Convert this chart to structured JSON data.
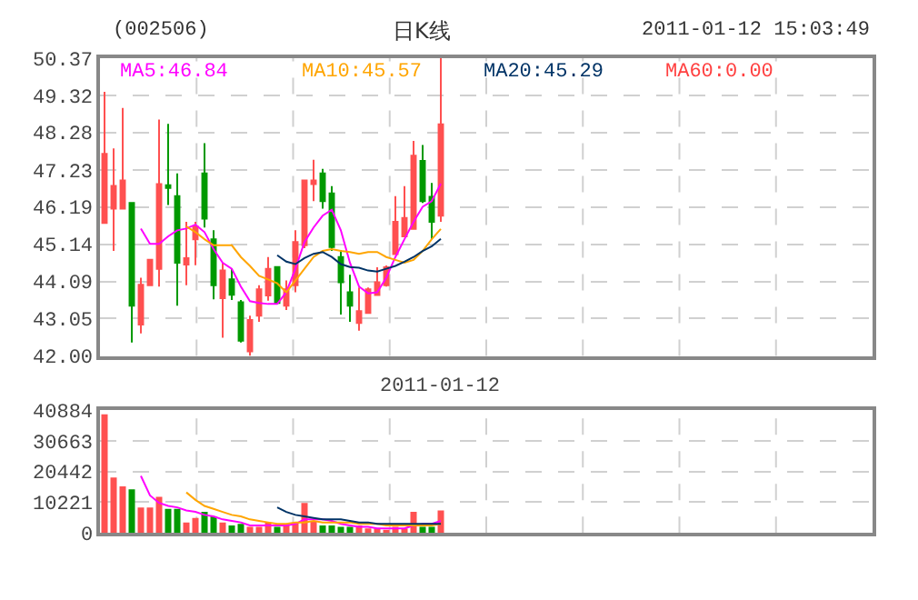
{
  "chart_data": [
    {
      "type": "candlestick",
      "title": "日K线",
      "annotations": [
        "(002506)",
        "2011-01-12 15:03:49",
        "MA60:0.00"
      ],
      "categories": [
        null,
        null,
        null,
        null,
        null,
        null,
        null,
        null,
        null,
        null,
        null,
        null,
        null,
        null,
        null,
        null,
        null,
        null,
        null,
        null,
        null,
        null,
        null,
        null,
        null,
        null,
        null,
        null,
        null,
        null,
        null,
        null,
        null,
        null,
        null,
        null,
        null,
        null
      ],
      "ohlc": [
        [
          45.74,
          49.42,
          45.74,
          47.68
        ],
        [
          46.14,
          47.83,
          44.95,
          46.78
        ],
        [
          46.14,
          48.97,
          46.14,
          46.93
        ],
        [
          46.3,
          46.3,
          42.38,
          43.41
        ],
        [
          42.88,
          44.2,
          42.63,
          44.0
        ],
        [
          43.99,
          44.7,
          43.99,
          44.7
        ],
        [
          44.45,
          48.64,
          43.95,
          46.83
        ],
        [
          46.8,
          48.52,
          46.24,
          46.72
        ],
        [
          46.49,
          47.13,
          43.41,
          44.62
        ],
        [
          44.57,
          45.77,
          43.99,
          44.75
        ],
        [
          45.28,
          45.77,
          44.55,
          45.64
        ],
        [
          47.13,
          47.98,
          45.61,
          45.86
        ],
        [
          45.28,
          45.53,
          43.59,
          43.99
        ],
        [
          43.62,
          44.62,
          42.51,
          44.4
        ],
        [
          44.15,
          44.45,
          43.57,
          43.72
        ],
        [
          43.51,
          43.57,
          42.38,
          42.43
        ],
        [
          42.13,
          43.13,
          42.0,
          43.01
        ],
        [
          43.13,
          43.99,
          42.96,
          43.87
        ],
        [
          43.7,
          44.78,
          43.55,
          44.45
        ],
        [
          44.5,
          44.5,
          43.49,
          43.49
        ],
        [
          43.41,
          44.12,
          43.29,
          43.87
        ],
        [
          43.99,
          45.53,
          43.79,
          45.2
        ],
        [
          45.11,
          46.93,
          45.03,
          46.93
        ],
        [
          46.83,
          47.51,
          46.35,
          46.93
        ],
        [
          47.13,
          47.26,
          46.14,
          46.35
        ],
        [
          46.57,
          46.77,
          44.95,
          45.06
        ],
        [
          44.78,
          44.97,
          43.16,
          44.07
        ],
        [
          43.79,
          44.28,
          42.96,
          43.41
        ],
        [
          42.93,
          43.92,
          42.71,
          43.26
        ],
        [
          43.21,
          43.92,
          43.21,
          43.87
        ],
        [
          43.71,
          44.49,
          43.71,
          44.07
        ],
        [
          43.99,
          44.54,
          43.95,
          44.49
        ],
        [
          44.86,
          46.49,
          44.86,
          45.77
        ],
        [
          45.36,
          46.77,
          45.36,
          45.88
        ],
        [
          45.57,
          48.04,
          45.57,
          47.63
        ],
        [
          47.48,
          47.93,
          46.3,
          46.35
        ],
        [
          46.47,
          46.86,
          45.28,
          45.77
        ],
        [
          45.94,
          50.37,
          45.77,
          48.51
        ]
      ],
      "colors": [
        "#ff5050",
        "#ff5050",
        "#ff5050",
        "#009900",
        "#ff5050",
        "#ff5050",
        "#ff5050",
        "#009900",
        "#009900",
        "#ff5050",
        "#ff5050",
        "#009900",
        "#009900",
        "#ff5050",
        "#009900",
        "#009900",
        "#ff5050",
        "#ff5050",
        "#ff5050",
        "#009900",
        "#ff5050",
        "#ff5050",
        "#ff5050",
        "#ff5050",
        "#009900",
        "#009900",
        "#009900",
        "#009900",
        "#ff5050",
        "#ff5050",
        "#ff5050",
        "#ff5050",
        "#ff5050",
        "#ff5050",
        "#ff5050",
        "#009900",
        "#009900",
        "#ff5050"
      ],
      "series": [
        {
          "type": "line",
          "name": "MA5:46.84",
          "color": "#ff00ff",
          "values": [
            null,
            null,
            null,
            null,
            45.58,
            45.15,
            45.15,
            45.36,
            45.53,
            45.58,
            45.69,
            45.48,
            45.0,
            44.62,
            44.45,
            43.95,
            43.54,
            43.49,
            43.46,
            43.46,
            43.79,
            44.45,
            45.2,
            45.61,
            45.94,
            46.11,
            45.53,
            44.62,
            43.95,
            43.76,
            43.79,
            44.2,
            44.78,
            45.28,
            45.77,
            46.19,
            46.35,
            46.84
          ]
        },
        {
          "type": "line",
          "name": "MA10:45.57",
          "color": "#ffa500",
          "values": [
            null,
            null,
            null,
            null,
            null,
            null,
            null,
            null,
            null,
            45.64,
            45.48,
            45.28,
            45.11,
            45.11,
            45.11,
            44.78,
            44.53,
            44.25,
            44.15,
            44.04,
            43.79,
            44.12,
            44.45,
            44.78,
            44.95,
            45.0,
            44.95,
            44.92,
            44.87,
            44.92,
            44.92,
            44.78,
            44.7,
            44.62,
            44.7,
            44.95,
            45.28,
            45.57
          ]
        },
        {
          "type": "line",
          "name": "MA20:45.29",
          "color": "#003366",
          "values": [
            null,
            null,
            null,
            null,
            null,
            null,
            null,
            null,
            null,
            null,
            null,
            null,
            null,
            null,
            null,
            null,
            null,
            null,
            null,
            44.83,
            44.65,
            44.58,
            44.75,
            44.87,
            44.92,
            44.78,
            44.58,
            44.5,
            44.48,
            44.4,
            44.37,
            44.45,
            44.53,
            44.65,
            44.78,
            44.95,
            45.08,
            45.29
          ]
        }
      ],
      "ylim": [
        42.0,
        50.37
      ],
      "yticks": [
        {
          "value": 42.0,
          "label": "42.00"
        },
        43.05,
        44.09,
        45.14,
        46.19,
        47.23,
        48.28,
        49.32,
        50.37
      ],
      "grid": true,
      "tick_labels": "y"
    },
    {
      "type": "bar",
      "title": "2011-01-12",
      "categories": [
        null,
        null,
        null,
        null,
        null,
        null,
        null,
        null,
        null,
        null,
        null,
        null,
        null,
        null,
        null,
        null,
        null,
        null,
        null,
        null,
        null,
        null,
        null,
        null,
        null,
        null,
        null,
        null,
        null,
        null,
        null,
        null,
        null,
        null,
        null,
        null,
        null,
        null
      ],
      "series": [
        {
          "type": "bar",
          "values": [
            39500,
            18500,
            15500,
            14500,
            8500,
            8500,
            12000,
            8000,
            8000,
            3500,
            5000,
            7000,
            5500,
            3500,
            2500,
            3000,
            2000,
            2000,
            3500,
            2000,
            3000,
            3500,
            10000,
            4000,
            2500,
            2500,
            2000,
            2000,
            2500,
            1500,
            1500,
            1000,
            2000,
            1500,
            7000,
            2000,
            2000,
            7500
          ],
          "colors": [
            "#ff5050",
            "#ff5050",
            "#ff5050",
            "#009900",
            "#ff5050",
            "#ff5050",
            "#ff5050",
            "#009900",
            "#009900",
            "#ff5050",
            "#ff5050",
            "#009900",
            "#009900",
            "#ff5050",
            "#009900",
            "#009900",
            "#ff5050",
            "#ff5050",
            "#ff5050",
            "#009900",
            "#ff5050",
            "#ff5050",
            "#ff5050",
            "#ff5050",
            "#009900",
            "#009900",
            "#009900",
            "#009900",
            "#ff5050",
            "#ff5050",
            "#ff5050",
            "#ff5050",
            "#ff5050",
            "#ff5050",
            "#ff5050",
            "#009900",
            "#009900",
            "#ff5050"
          ]
        },
        {
          "type": "line",
          "color": "#ff00ff",
          "values": [
            null,
            null,
            null,
            null,
            19000,
            12500,
            10000,
            9000,
            8500,
            7500,
            7000,
            6000,
            5500,
            4500,
            4000,
            3500,
            2500,
            2500,
            2500,
            2500,
            2500,
            3000,
            4500,
            4500,
            4500,
            4000,
            3000,
            2500,
            2000,
            2000,
            1500,
            1500,
            1500,
            1500,
            2500,
            3000,
            3000,
            4000
          ]
        },
        {
          "type": "line",
          "color": "#ffa500",
          "values": [
            null,
            null,
            null,
            null,
            null,
            null,
            null,
            null,
            null,
            13500,
            11000,
            9000,
            8000,
            7000,
            6000,
            5500,
            4500,
            4000,
            3500,
            3000,
            3000,
            3500,
            3500,
            4000,
            3500,
            3500,
            3500,
            3500,
            3000,
            3000,
            3000,
            2500,
            2500,
            2500,
            2500,
            2500,
            2500,
            3000
          ]
        },
        {
          "type": "line",
          "color": "#003366",
          "values": [
            null,
            null,
            null,
            null,
            null,
            null,
            null,
            null,
            null,
            null,
            null,
            null,
            null,
            null,
            null,
            null,
            null,
            null,
            null,
            8500,
            7000,
            6000,
            5500,
            5000,
            4500,
            4500,
            4500,
            4000,
            3500,
            3500,
            3000,
            3000,
            3000,
            3000,
            3000,
            3000,
            3000,
            3000
          ]
        }
      ],
      "ylim": [
        0,
        40884
      ],
      "yticks": [
        0,
        10221,
        20442,
        30663,
        40884
      ],
      "grid": true,
      "tick_labels": "y"
    }
  ]
}
